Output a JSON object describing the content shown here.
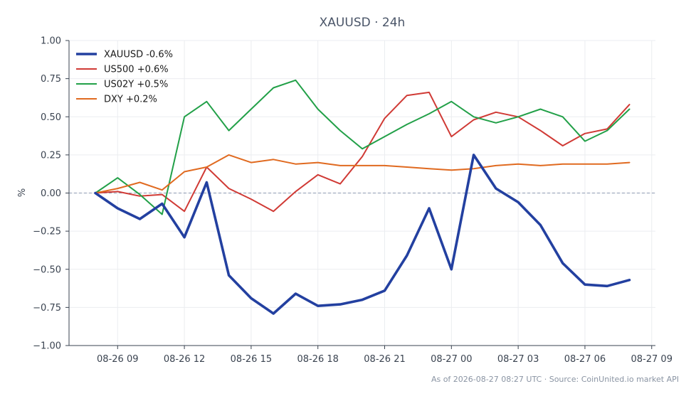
{
  "chart_data": {
    "type": "line",
    "title": "XAUUSD · 24h",
    "ylabel": "%",
    "xlabel": "",
    "ylim": [
      -1.0,
      1.0
    ],
    "y_ticks": [
      -1.0,
      -0.75,
      -0.5,
      -0.25,
      0.0,
      0.25,
      0.5,
      0.75,
      1.0
    ],
    "y_tick_labels": [
      "−1.00",
      "−0.75",
      "−0.50",
      "−0.25",
      "0.00",
      "0.25",
      "0.50",
      "0.75",
      "1.00"
    ],
    "x_tick_labels": [
      "08-26 09",
      "08-26 12",
      "08-26 15",
      "08-26 18",
      "08-26 21",
      "08-27 00",
      "08-27 03",
      "08-27 06",
      "08-27 09"
    ],
    "x": [
      "08-26 08",
      "08-26 09",
      "08-26 10",
      "08-26 11",
      "08-26 12",
      "08-26 13",
      "08-26 14",
      "08-26 15",
      "08-26 16",
      "08-26 17",
      "08-26 18",
      "08-26 19",
      "08-26 20",
      "08-26 21",
      "08-26 22",
      "08-26 23",
      "08-27 00",
      "08-27 01",
      "08-27 02",
      "08-27 03",
      "08-27 04",
      "08-27 05",
      "08-27 06",
      "08-27 07",
      "08-27 08"
    ],
    "grid": true,
    "zero_line": true,
    "legend_position": "top-left",
    "series": [
      {
        "name": "XAUUSD -0.6%",
        "color": "#2340a0",
        "values": [
          0.0,
          -0.1,
          -0.17,
          -0.07,
          -0.29,
          0.07,
          -0.54,
          -0.69,
          -0.79,
          -0.66,
          -0.74,
          -0.73,
          -0.7,
          -0.64,
          -0.41,
          -0.1,
          -0.5,
          0.25,
          0.03,
          -0.06,
          -0.21,
          -0.46,
          -0.6,
          -0.61,
          -0.57
        ],
        "emphasis": true
      },
      {
        "name": "US500 +0.6%",
        "color": "#d03a35",
        "values": [
          0.0,
          0.01,
          -0.02,
          -0.01,
          -0.12,
          0.17,
          0.03,
          -0.04,
          -0.12,
          0.01,
          0.12,
          0.06,
          0.24,
          0.49,
          0.64,
          0.66,
          0.37,
          0.48,
          0.53,
          0.5,
          0.41,
          0.31,
          0.39,
          0.42,
          0.58
        ]
      },
      {
        "name": "US02Y +0.5%",
        "color": "#22a048",
        "values": [
          0.0,
          0.1,
          -0.01,
          -0.14,
          0.5,
          0.6,
          0.41,
          0.55,
          0.69,
          0.74,
          0.55,
          0.41,
          0.29,
          0.37,
          0.45,
          0.52,
          0.6,
          0.5,
          0.46,
          0.5,
          0.55,
          0.5,
          0.34,
          0.41,
          0.55
        ]
      },
      {
        "name": "DXY +0.2%",
        "color": "#e06a20",
        "values": [
          0.0,
          0.03,
          0.07,
          0.02,
          0.14,
          0.17,
          0.25,
          0.2,
          0.22,
          0.19,
          0.2,
          0.18,
          0.18,
          0.18,
          0.17,
          0.16,
          0.15,
          0.16,
          0.18,
          0.19,
          0.18,
          0.19,
          0.19,
          0.19,
          0.2
        ]
      }
    ]
  },
  "footer": "As of 2026-08-27 08:27 UTC · Source: CoinUnited.io market API"
}
